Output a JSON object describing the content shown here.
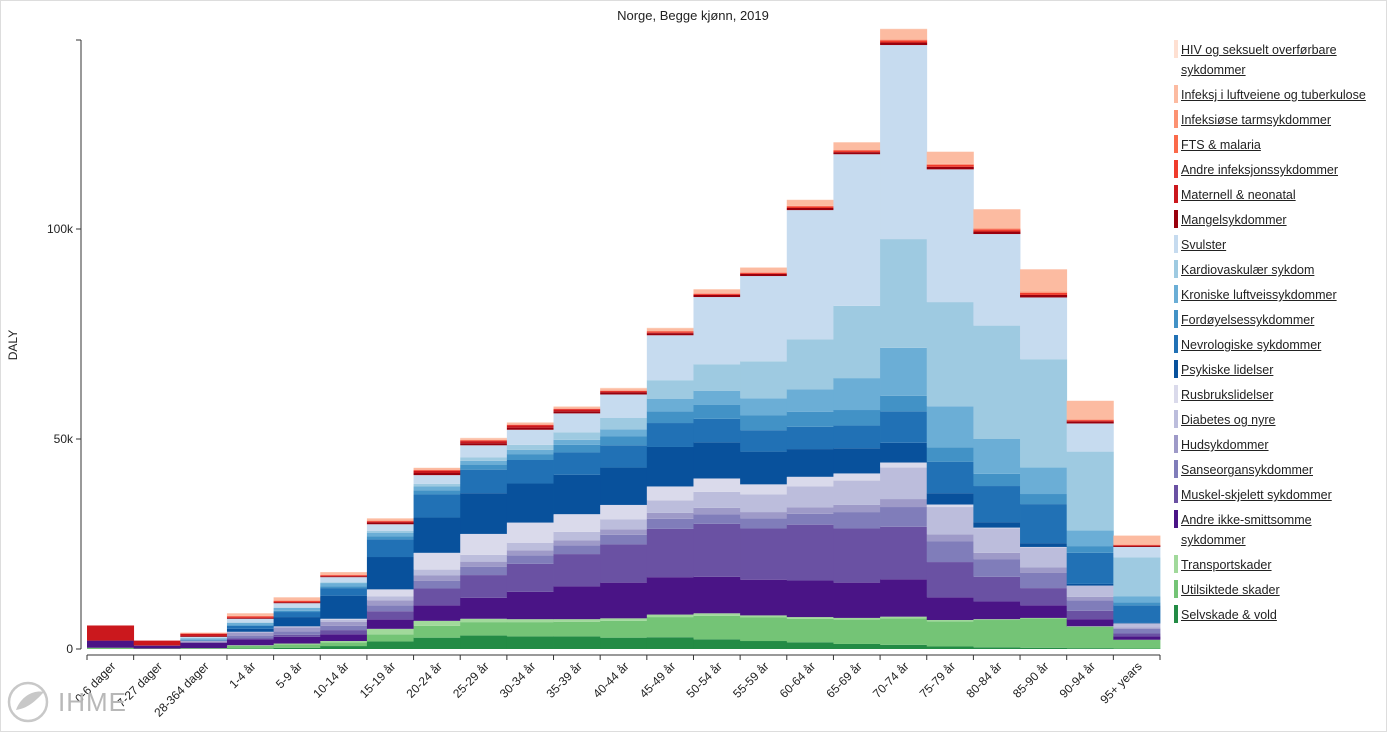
{
  "chart_data": {
    "type": "bar",
    "stacked": true,
    "title": "Norge, Begge kjønn, 2019",
    "ylabel": "DALY",
    "xlabel": "",
    "ylim": [
      0,
      145000
    ],
    "yticks": [
      {
        "value": 0,
        "label": "0"
      },
      {
        "value": 50000,
        "label": "50k"
      },
      {
        "value": 100000,
        "label": "100k"
      }
    ],
    "categories": [
      "0-6 dager",
      "7-27 dager",
      "28-364 dager",
      "1-4 år",
      "5-9 år",
      "10-14 år",
      "15-19 år",
      "20-24 år",
      "25-29 år",
      "30-34 år",
      "35-39 år",
      "40-44 år",
      "45-49 år",
      "50-54 år",
      "55-59 år",
      "60-64 år",
      "65-69 år",
      "70-74 år",
      "75-79 år",
      "80-84 år",
      "85-90 år",
      "90-94 år",
      "95+ years"
    ],
    "series": [
      {
        "name": "Selvskade & vold",
        "color": "#238b45",
        "values": [
          0,
          0,
          0,
          100,
          300,
          700,
          1800,
          2700,
          3200,
          3000,
          3000,
          2700,
          2800,
          2300,
          1900,
          1600,
          1200,
          1000,
          600,
          400,
          300,
          200,
          100
        ]
      },
      {
        "name": "Utilsiktede skader",
        "color": "#74c476",
        "values": [
          300,
          100,
          200,
          700,
          800,
          900,
          1700,
          2800,
          3200,
          3400,
          3500,
          4000,
          4800,
          5600,
          5600,
          5600,
          5800,
          6300,
          6000,
          6500,
          7000,
          5100,
          2100
        ]
      },
      {
        "name": "Transportskader",
        "color": "#a1d99b",
        "values": [
          0,
          0,
          0,
          100,
          200,
          300,
          1300,
          1200,
          800,
          700,
          600,
          600,
          600,
          600,
          500,
          400,
          400,
          400,
          300,
          200,
          100,
          100,
          0
        ]
      },
      {
        "name": "Andre ikke-smittsomme sykdommer",
        "color": "#4a1486",
        "values": [
          1700,
          700,
          1300,
          1400,
          1600,
          1600,
          2200,
          3700,
          5000,
          6500,
          7800,
          8500,
          8900,
          8700,
          8500,
          8700,
          8400,
          8900,
          5400,
          4200,
          3000,
          1700,
          800
        ]
      },
      {
        "name": "Muskel-skjelett sykdommer",
        "color": "#6a51a3",
        "values": [
          0,
          0,
          100,
          200,
          500,
          1000,
          2000,
          4000,
          5400,
          6700,
          7700,
          9100,
          11500,
          12600,
          12200,
          13300,
          12900,
          12500,
          8400,
          5900,
          4100,
          2000,
          700
        ]
      },
      {
        "name": "Sanseorgansykdommer",
        "color": "#807dba",
        "values": [
          0,
          0,
          100,
          600,
          800,
          1000,
          1400,
          1800,
          2000,
          2000,
          2100,
          2300,
          2400,
          2300,
          2400,
          2600,
          3900,
          4700,
          4900,
          4200,
          3600,
          2500,
          1100
        ]
      },
      {
        "name": "Hudsykdommer",
        "color": "#9e9ac8",
        "values": [
          0,
          0,
          200,
          800,
          900,
          1000,
          1200,
          1300,
          1200,
          1200,
          1200,
          1300,
          1400,
          1500,
          1500,
          1500,
          1700,
          1900,
          1700,
          1500,
          1300,
          800,
          300
        ]
      },
      {
        "name": "Diabetes og nyre",
        "color": "#bcbddc",
        "values": [
          0,
          0,
          100,
          200,
          300,
          500,
          900,
          1400,
          1600,
          1800,
          2000,
          2400,
          3000,
          3800,
          4200,
          5000,
          5800,
          7500,
          6500,
          5800,
          4800,
          2700,
          1000
        ]
      },
      {
        "name": "Rusbrukslidelser",
        "color": "#dadaeb",
        "values": [
          0,
          0,
          0,
          0,
          0,
          200,
          1700,
          4000,
          5000,
          4800,
          4200,
          3400,
          3300,
          3200,
          2400,
          2300,
          1700,
          1200,
          600,
          200,
          100,
          0,
          0
        ]
      },
      {
        "name": "Psykiske lidelser",
        "color": "#08519c",
        "values": [
          0,
          0,
          0,
          700,
          2200,
          5500,
          7700,
          8400,
          9700,
          9300,
          9400,
          8900,
          9400,
          8600,
          7800,
          6600,
          6000,
          4700,
          2700,
          1300,
          900,
          400,
          100
        ]
      },
      {
        "name": "Nevrologiske sykdommer",
        "color": "#2171b5",
        "values": [
          0,
          0,
          200,
          700,
          1200,
          1800,
          4200,
          5500,
          5600,
          5600,
          5300,
          5300,
          5700,
          5600,
          5100,
          5300,
          5400,
          7500,
          7500,
          8600,
          9300,
          7400,
          4200
        ]
      },
      {
        "name": "Fordøyelsessykdommer",
        "color": "#4292c6",
        "values": [
          0,
          0,
          100,
          200,
          300,
          400,
          700,
          1000,
          1200,
          1400,
          1800,
          2100,
          2800,
          3300,
          3500,
          3600,
          3700,
          3700,
          3400,
          2900,
          2400,
          1600,
          700
        ]
      },
      {
        "name": "Kroniske luftveissykdommer",
        "color": "#6baed6",
        "values": [
          0,
          0,
          200,
          500,
          700,
          800,
          900,
          900,
          900,
          1000,
          1200,
          1700,
          3000,
          3400,
          4100,
          5300,
          7600,
          11400,
          9800,
          8300,
          6300,
          3700,
          1400
        ]
      },
      {
        "name": "Kardiovaskulær sykdom",
        "color": "#9ecae1",
        "values": [
          0,
          0,
          100,
          100,
          100,
          200,
          400,
          600,
          800,
          1200,
          1800,
          2700,
          4400,
          6300,
          8800,
          11900,
          17200,
          25900,
          24800,
          27000,
          25800,
          18800,
          9300
        ]
      },
      {
        "name": "Svulster",
        "color": "#c6dbef",
        "values": [
          0,
          0,
          300,
          900,
          1000,
          1200,
          1600,
          2100,
          2900,
          3600,
          4500,
          5600,
          10700,
          16000,
          20300,
          30800,
          36100,
          46200,
          31600,
          21800,
          14700,
          6700,
          2500
        ]
      },
      {
        "name": "Mangelsykdommer",
        "color": "#99000d",
        "values": [
          0,
          100,
          200,
          200,
          200,
          200,
          400,
          500,
          500,
          500,
          500,
          500,
          500,
          500,
          500,
          500,
          500,
          600,
          600,
          600,
          600,
          500,
          300
        ]
      },
      {
        "name": "Maternell & neonatal",
        "color": "#cb181d",
        "values": [
          3600,
          1100,
          500,
          100,
          100,
          100,
          200,
          500,
          500,
          500,
          400,
          200,
          100,
          0,
          0,
          0,
          0,
          0,
          0,
          0,
          0,
          0,
          0
        ]
      },
      {
        "name": "Andre infeksjonssykdommer",
        "color": "#ef3b2c",
        "values": [
          0,
          0,
          100,
          300,
          300,
          200,
          200,
          200,
          200,
          200,
          200,
          200,
          300,
          300,
          300,
          400,
          400,
          500,
          500,
          500,
          500,
          300,
          200
        ]
      },
      {
        "name": "FTS & malaria",
        "color": "#fb6a4a",
        "values": [
          0,
          0,
          0,
          0,
          0,
          0,
          0,
          0,
          0,
          0,
          0,
          0,
          0,
          0,
          0,
          0,
          0,
          0,
          0,
          0,
          0,
          0,
          0
        ]
      },
      {
        "name": "Infeksiøse tarmsykdommer",
        "color": "#fc9272",
        "values": [
          0,
          0,
          0,
          100,
          100,
          100,
          100,
          100,
          100,
          100,
          100,
          100,
          100,
          100,
          100,
          100,
          100,
          200,
          200,
          300,
          300,
          200,
          100
        ]
      },
      {
        "name": "Infeksj i luftveiene og tuberkulose",
        "color": "#fcbba1",
        "values": [
          0,
          0,
          200,
          600,
          700,
          600,
          500,
          400,
          400,
          400,
          400,
          500,
          700,
          900,
          1100,
          1400,
          1800,
          2500,
          2900,
          4500,
          5300,
          4400,
          2100
        ]
      },
      {
        "name": "HIV og seksuelt overførbare sykdommer",
        "color": "#fee0d2",
        "values": [
          0,
          0,
          0,
          0,
          0,
          0,
          0,
          100,
          100,
          100,
          100,
          100,
          100,
          100,
          100,
          100,
          100,
          100,
          0,
          0,
          0,
          0,
          0
        ]
      }
    ],
    "legend_position": "right",
    "grid": false
  },
  "branding": {
    "logo_text": "IHME"
  }
}
